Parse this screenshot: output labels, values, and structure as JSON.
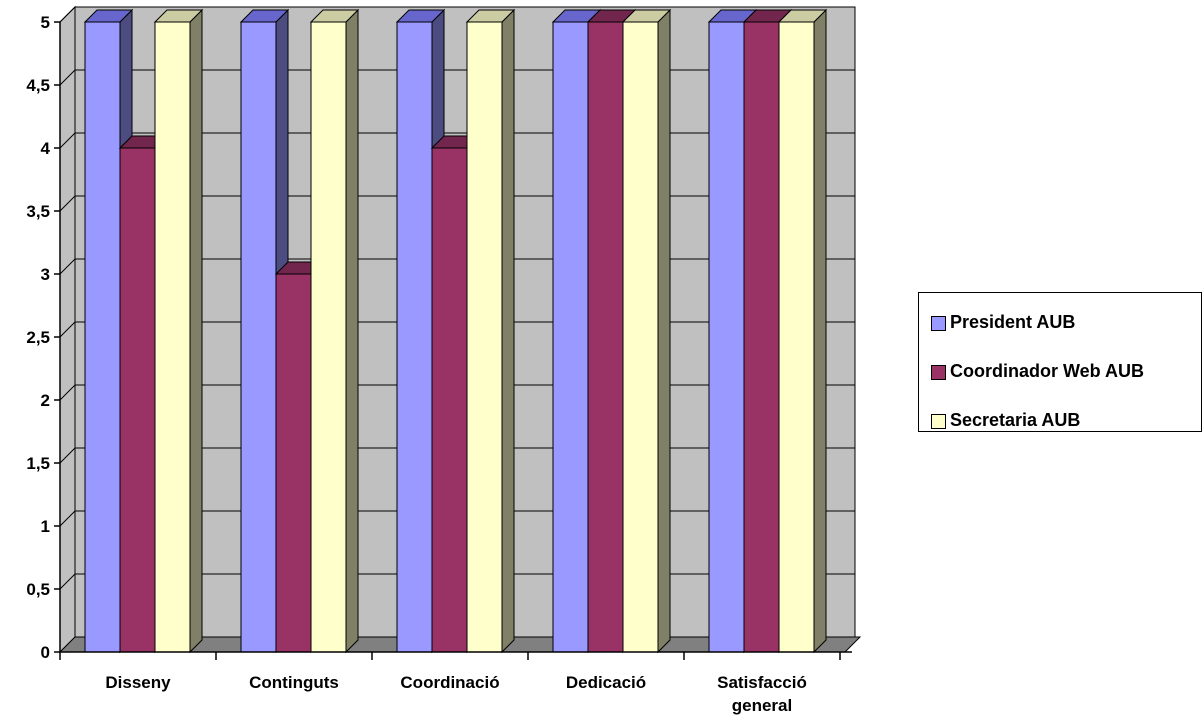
{
  "chart_data": {
    "type": "bar",
    "categories": [
      [
        "Disseny"
      ],
      [
        "Continguts"
      ],
      [
        "Coordinació"
      ],
      [
        "Dedicació"
      ],
      [
        "Satisfacció",
        "general"
      ]
    ],
    "series": [
      {
        "name": "President AUB",
        "values": [
          5,
          5,
          5,
          5,
          5
        ],
        "color": "#9999ff",
        "side_color": "#4c4c80",
        "top_color": "#6666cc"
      },
      {
        "name": "Coordinador Web AUB",
        "values": [
          4,
          3,
          4,
          5,
          5
        ],
        "color": "#993366",
        "side_color": "#4c1a33",
        "top_color": "#73264d"
      },
      {
        "name": "Secretaria AUB",
        "values": [
          5,
          5,
          5,
          5,
          5
        ],
        "color": "#ffffcc",
        "side_color": "#808066",
        "top_color": "#cccca3"
      }
    ],
    "y_ticks": [
      "0",
      "0,5",
      "1",
      "1,5",
      "2",
      "2,5",
      "3",
      "3,5",
      "4",
      "4,5",
      "5"
    ],
    "ylim": [
      0,
      5
    ],
    "grid": true,
    "legend_position": "right",
    "wall_color": "#c0c0c0",
    "floor_color": "#808080"
  }
}
